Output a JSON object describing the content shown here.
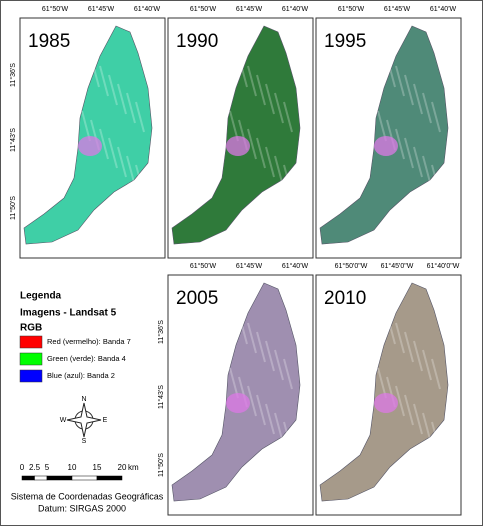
{
  "panels": [
    {
      "year": "1985",
      "lon_labels": [
        "61°50'W",
        "61°45'W",
        "61°40'W"
      ],
      "lat_labels": [
        "11°36'S",
        "11°43'S",
        "11°50'S"
      ],
      "color": "#3fcfa6"
    },
    {
      "year": "1990",
      "lon_labels": [
        "61°50'W",
        "61°45'W",
        "61°40'W"
      ],
      "color": "#2f7a3a"
    },
    {
      "year": "1995",
      "lon_labels": [
        "61°50'W",
        "61°45'W",
        "61°40'W"
      ],
      "color": "#4f8a78"
    },
    {
      "year": "2005",
      "lon_labels": [
        "61°50'W",
        "61°45'W",
        "61°40'W"
      ],
      "lat_labels": [
        "11°36'S",
        "11°43'S",
        "11°50'S"
      ],
      "color": "#9f8fb0"
    },
    {
      "year": "2010",
      "lon_labels": [
        "61°50'0\"W",
        "61°45'0\"W",
        "61°40'0\"W"
      ],
      "color": "#a69a8a"
    }
  ],
  "legend": {
    "title": "Legenda",
    "subtitle": "Imagens - Landsat 5",
    "rgb": "RGB",
    "items": [
      {
        "label": "Red (vermelho):   Banda  7",
        "color": "#ff0000"
      },
      {
        "label": "Green (verde): Banda 4",
        "color": "#00ff00"
      },
      {
        "label": "Blue (azul):  Banda 2",
        "color": "#0000ff"
      }
    ]
  },
  "north_arrow": {
    "n": "N",
    "s": "S",
    "e": "E",
    "w": "W"
  },
  "scale_bar": {
    "ticks": [
      0,
      2.5,
      5,
      10,
      15,
      20
    ],
    "unit": "km"
  },
  "footer": [
    "Sistema de Coordenadas Geográficas",
    "Datum: SIRGAS 2000"
  ]
}
